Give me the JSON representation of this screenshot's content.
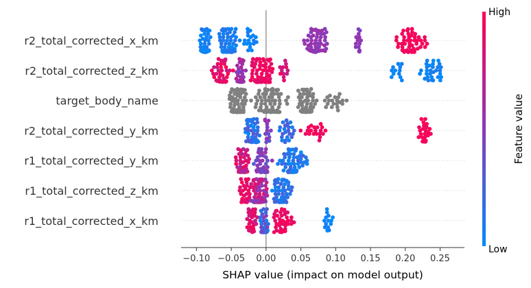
{
  "chart_data": {
    "type": "scatter",
    "subtype": "shap-beeswarm",
    "xlabel": "SHAP value (impact on model output)",
    "xlim": [
      -0.122,
      0.285
    ],
    "xticks": [
      -0.1,
      -0.05,
      0.0,
      0.05,
      0.1,
      0.15,
      0.2,
      0.25
    ],
    "xtick_labels": [
      "−0.10",
      "−0.05",
      "0.00",
      "0.05",
      "0.10",
      "0.15",
      "0.20",
      "0.25"
    ],
    "features": [
      "r2_total_corrected_x_km",
      "r2_total_corrected_z_km",
      "target_body_name",
      "r2_total_corrected_y_km",
      "r1_total_corrected_y_km",
      "r1_total_corrected_z_km",
      "r1_total_corrected_x_km"
    ],
    "colorbar": {
      "title": "Feature value",
      "high_label": "High",
      "low_label": "Low",
      "low_color": "#008bfb",
      "mid_color": "#8a3ab9",
      "high_color": "#ff0052"
    },
    "grey_color": "#808080",
    "series": [
      {
        "clusters": [
          {
            "x0": -0.1,
            "x1": -0.075,
            "n": 70,
            "c0": 0.0,
            "c1": 0.12
          },
          {
            "x0": -0.075,
            "x1": -0.035,
            "n": 100,
            "c0": 0.0,
            "c1": 0.15
          },
          {
            "x0": -0.035,
            "x1": -0.01,
            "n": 18,
            "c0": 0.0,
            "c1": 0.1
          },
          {
            "x0": 0.05,
            "x1": 0.095,
            "n": 65,
            "c0": 0.48,
            "c1": 0.6
          },
          {
            "x0": 0.125,
            "x1": 0.14,
            "n": 14,
            "c0": 0.45,
            "c1": 0.55
          },
          {
            "x0": 0.175,
            "x1": 0.24,
            "n": 55,
            "c0": 0.92,
            "c1": 1.0
          }
        ]
      },
      {
        "clusters": [
          {
            "x0": -0.085,
            "x1": -0.045,
            "n": 40,
            "c0": 0.75,
            "c1": 1.0
          },
          {
            "x0": -0.045,
            "x1": -0.025,
            "n": 55,
            "c0": 0.45,
            "c1": 0.7
          },
          {
            "x0": -0.03,
            "x1": 0.015,
            "n": 85,
            "c0": 0.85,
            "c1": 1.0
          },
          {
            "x0": 0.015,
            "x1": 0.035,
            "n": 12,
            "c0": 0.7,
            "c1": 1.0
          },
          {
            "x0": 0.17,
            "x1": 0.205,
            "n": 12,
            "c0": 0.0,
            "c1": 0.1
          },
          {
            "x0": 0.21,
            "x1": 0.265,
            "n": 30,
            "c0": 0.0,
            "c1": 0.1
          }
        ]
      },
      {
        "grey": true,
        "clusters": [
          {
            "x0": -0.055,
            "x1": -0.025,
            "n": 130
          },
          {
            "x0": -0.025,
            "x1": 0.04,
            "n": 90
          },
          {
            "x0": 0.04,
            "x1": 0.075,
            "n": 70
          },
          {
            "x0": 0.075,
            "x1": 0.125,
            "n": 20
          }
        ]
      },
      {
        "clusters": [
          {
            "x0": -0.035,
            "x1": -0.005,
            "n": 95,
            "c0": 0.0,
            "c1": 0.35
          },
          {
            "x0": -0.005,
            "x1": 0.01,
            "n": 14,
            "c0": 0.3,
            "c1": 0.6
          },
          {
            "x0": 0.015,
            "x1": 0.045,
            "n": 24,
            "c0": 0.05,
            "c1": 0.3
          },
          {
            "x0": 0.045,
            "x1": 0.095,
            "n": 20,
            "c0": 0.9,
            "c1": 1.0
          },
          {
            "x0": 0.215,
            "x1": 0.24,
            "n": 30,
            "c0": 0.92,
            "c1": 1.0
          }
        ]
      },
      {
        "clusters": [
          {
            "x0": -0.05,
            "x1": -0.02,
            "n": 70,
            "c0": 0.6,
            "c1": 1.0
          },
          {
            "x0": -0.02,
            "x1": 0.01,
            "n": 70,
            "c0": 0.3,
            "c1": 0.6
          },
          {
            "x0": 0.01,
            "x1": 0.065,
            "n": 80,
            "c0": 0.0,
            "c1": 0.25
          }
        ]
      },
      {
        "clusters": [
          {
            "x0": -0.04,
            "x1": -0.02,
            "n": 35,
            "c0": 0.85,
            "c1": 1.0
          },
          {
            "x0": -0.025,
            "x1": 0.005,
            "n": 110,
            "c0": 0.45,
            "c1": 0.9
          },
          {
            "x0": 0.005,
            "x1": 0.04,
            "n": 70,
            "c0": 0.0,
            "c1": 0.25
          }
        ]
      },
      {
        "clusters": [
          {
            "x0": -0.03,
            "x1": -0.01,
            "n": 30,
            "c0": 0.7,
            "c1": 1.0
          },
          {
            "x0": -0.01,
            "x1": 0.005,
            "n": 100,
            "c0": 0.0,
            "c1": 0.55
          },
          {
            "x0": 0.005,
            "x1": 0.045,
            "n": 45,
            "c0": 0.85,
            "c1": 1.0
          },
          {
            "x0": 0.08,
            "x1": 0.1,
            "n": 14,
            "c0": 0.0,
            "c1": 0.08
          }
        ]
      }
    ]
  }
}
